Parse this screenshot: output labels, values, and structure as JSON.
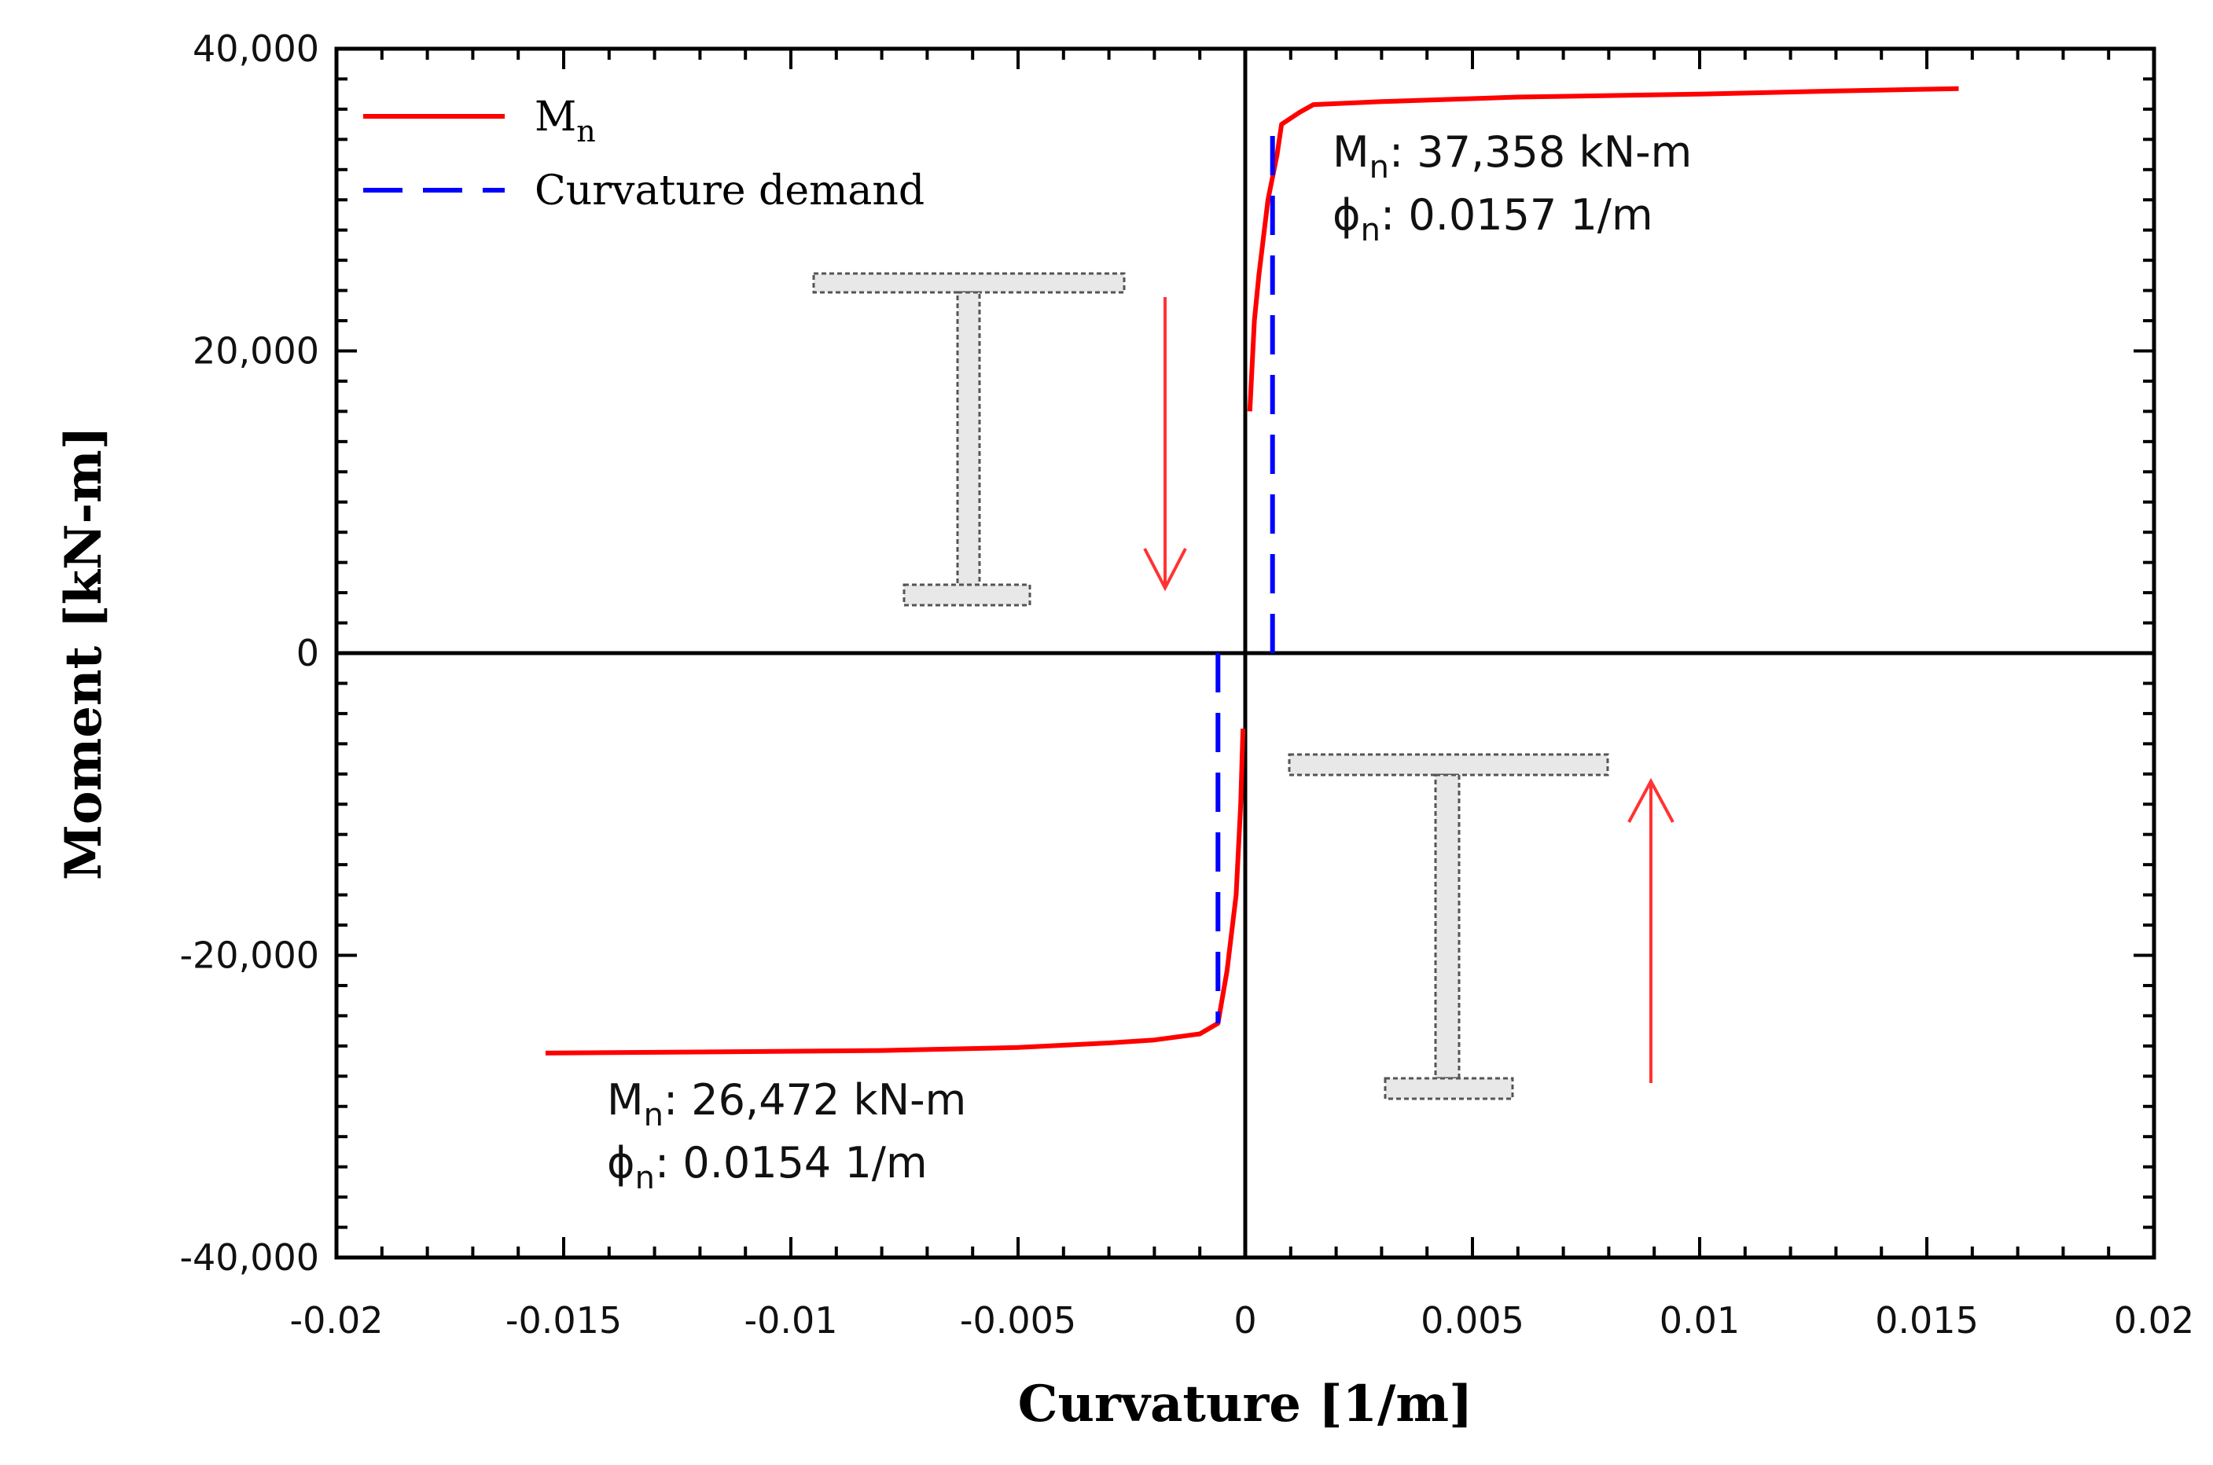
{
  "chart_data": {
    "type": "line",
    "title": "",
    "xlabel": "Curvature [1/m]",
    "ylabel": "Moment [kN-m]",
    "xlim": [
      -0.02,
      0.02
    ],
    "ylim": [
      -40000,
      40000
    ],
    "x_ticks": [
      -0.02,
      -0.015,
      -0.01,
      -0.005,
      0,
      0.005,
      0.01,
      0.015,
      0.02
    ],
    "x_tick_labels": [
      "-0.02",
      "-0.015",
      "-0.01",
      "-0.005",
      "0",
      "0.005",
      "0.01",
      "0.015",
      "0.02"
    ],
    "y_ticks": [
      -40000,
      -20000,
      0,
      20000,
      40000
    ],
    "y_tick_labels": [
      "-40,000",
      "-20,000",
      "0",
      "20,000",
      "40,000"
    ],
    "grid": false,
    "legend_position": "top-left",
    "series": [
      {
        "name": "M_n",
        "legend_main": "M",
        "legend_sub": "n",
        "color": "#ff0000",
        "style": "solid",
        "segments": [
          {
            "x": [
              0.0001,
              0.0002,
              0.0003,
              0.0005,
              0.0007,
              0.0008,
              0.0012,
              0.0015,
              0.003,
              0.006,
              0.01,
              0.013,
              0.0157
            ],
            "y": [
              16000,
              22000,
              25000,
              30000,
              33000,
              35000,
              35800,
              36300,
              36500,
              36800,
              37000,
              37200,
              37358
            ]
          },
          {
            "x": [
              -0.0154,
              -0.012,
              -0.008,
              -0.005,
              -0.003,
              -0.002,
              -0.001,
              -0.0006,
              -0.0004,
              -0.0002,
              -0.0001,
              -5e-05
            ],
            "y": [
              -26472,
              -26400,
              -26300,
              -26100,
              -25800,
              -25600,
              -25200,
              -24500,
              -21000,
              -16000,
              -10000,
              -5000
            ]
          }
        ]
      },
      {
        "name": "Curvature demand",
        "color": "#0000ff",
        "style": "dashed",
        "segments": [
          {
            "x": [
              0.0006,
              0.0006
            ],
            "y": [
              0,
              35000
            ]
          },
          {
            "x": [
              -0.0006,
              -0.0006
            ],
            "y": [
              0,
              -24500
            ]
          }
        ]
      }
    ],
    "annotations": [
      {
        "m_main": "M",
        "m_sub": "n",
        "m_value": ": 37,358 kN-m",
        "phi_main": "ϕ",
        "phi_sub": "n",
        "phi_value": ": 0.0157 1/m"
      },
      {
        "m_main": "M",
        "m_sub": "n",
        "m_value": ": 26,472 kN-m",
        "phi_main": "ϕ",
        "phi_sub": "n",
        "phi_value": ": 0.0154 1/m"
      }
    ]
  }
}
